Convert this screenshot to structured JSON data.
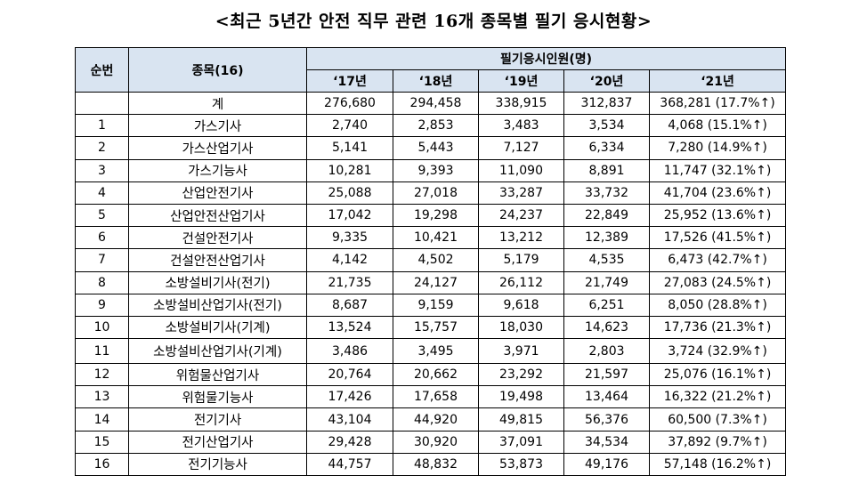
{
  "title": "<최근 5년간 안전 직무 관련 16개 종목별 필기 응시현황>",
  "headers": {
    "no": "순번",
    "item": "종목(16)",
    "group": "필기응시인원(명)",
    "years": [
      "‘17년",
      "‘18년",
      "‘19년",
      "‘20년",
      "‘21년"
    ]
  },
  "rows": [
    {
      "no": "",
      "name": "계",
      "v": [
        "276,680",
        "294,458",
        "338,915",
        "312,837",
        "368,281 (17.7%↑)"
      ]
    },
    {
      "no": "1",
      "name": "가스기사",
      "v": [
        "2,740",
        "2,853",
        "3,483",
        "3,534",
        "4,068 (15.1%↑)"
      ]
    },
    {
      "no": "2",
      "name": "가스산업기사",
      "v": [
        "5,141",
        "5,443",
        "7,127",
        "6,334",
        "7,280 (14.9%↑)"
      ]
    },
    {
      "no": "3",
      "name": "가스기능사",
      "v": [
        "10,281",
        "9,393",
        "11,090",
        "8,891",
        "11,747 (32.1%↑)"
      ]
    },
    {
      "no": "4",
      "name": "산업안전기사",
      "v": [
        "25,088",
        "27,018",
        "33,287",
        "33,732",
        "41,704 (23.6%↑)"
      ]
    },
    {
      "no": "5",
      "name": "산업안전산업기사",
      "v": [
        "17,042",
        "19,298",
        "24,237",
        "22,849",
        "25,952 (13.6%↑)"
      ]
    },
    {
      "no": "6",
      "name": "건설안전기사",
      "v": [
        "9,335",
        "10,421",
        "13,212",
        "12,389",
        "17,526 (41.5%↑)"
      ]
    },
    {
      "no": "7",
      "name": "건설안전산업기사",
      "v": [
        "4,142",
        "4,502",
        "5,179",
        "4,535",
        "6,473 (42.7%↑)"
      ]
    },
    {
      "no": "8",
      "name": "소방설비기사(전기)",
      "v": [
        "21,735",
        "24,127",
        "26,112",
        "21,749",
        "27,083 (24.5%↑)"
      ]
    },
    {
      "no": "9",
      "name": "소방설비산업기사(전기)",
      "v": [
        "8,687",
        "9,159",
        "9,618",
        "6,251",
        "8,050 (28.8%↑)"
      ]
    },
    {
      "no": "10",
      "name": "소방설비기사(기계)",
      "v": [
        "13,524",
        "15,757",
        "18,030",
        "14,623",
        "17,736 (21.3%↑)"
      ]
    },
    {
      "no": "11",
      "name": "소방설비산업기사(기계)",
      "v": [
        "3,486",
        "3,495",
        "3,971",
        "2,803",
        "3,724 (32.9%↑)"
      ]
    },
    {
      "no": "12",
      "name": "위험물산업기사",
      "v": [
        "20,764",
        "20,662",
        "23,292",
        "21,597",
        "25,076 (16.1%↑)"
      ]
    },
    {
      "no": "13",
      "name": "위험물기능사",
      "v": [
        "17,426",
        "17,658",
        "19,498",
        "13,464",
        "16,322 (21.2%↑)"
      ]
    },
    {
      "no": "14",
      "name": "전기기사",
      "v": [
        "43,104",
        "44,920",
        "49,815",
        "56,376",
        "60,500 (7.3%↑)"
      ]
    },
    {
      "no": "15",
      "name": "전기산업기사",
      "v": [
        "29,428",
        "30,920",
        "37,091",
        "34,534",
        "37,892 (9.7%↑)"
      ]
    },
    {
      "no": "16",
      "name": "전기기능사",
      "v": [
        "44,757",
        "48,832",
        "53,873",
        "49,176",
        "57,148 (16.2%↑)"
      ]
    }
  ]
}
